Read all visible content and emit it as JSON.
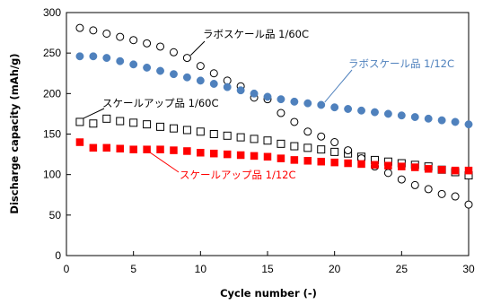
{
  "chart_data": {
    "type": "scatter",
    "xlabel": "Cycle number (-)",
    "ylabel": "Discharge capacity  (mAh/g)",
    "xlim": [
      0,
      30
    ],
    "ylim": [
      0,
      300
    ],
    "xticks": [
      "0",
      "5",
      "10",
      "15",
      "20",
      "25",
      "30"
    ],
    "yticks": [
      "0",
      "50",
      "100",
      "150",
      "200",
      "250",
      "300"
    ],
    "grid": false,
    "legend": "none",
    "series": [
      {
        "name": "ラボスケール品 1/60C",
        "marker": "open-circle",
        "color": "#000000",
        "x": [
          1,
          2,
          3,
          4,
          5,
          6,
          7,
          8,
          9,
          10,
          11,
          12,
          13,
          14,
          15,
          16,
          17,
          18,
          19,
          20,
          21,
          22,
          23,
          24,
          25,
          26,
          27,
          28,
          29,
          30
        ],
        "values": [
          281,
          278,
          274,
          270,
          266,
          262,
          258,
          251,
          244,
          234,
          225,
          216,
          209,
          195,
          193,
          176,
          165,
          153,
          147,
          140,
          130,
          120,
          110,
          102,
          94,
          87,
          82,
          76,
          73,
          63
        ]
      },
      {
        "name": "ラボスケール品 1/12C",
        "marker": "filled-circle",
        "color": "#4f81bd",
        "x": [
          1,
          2,
          3,
          4,
          5,
          6,
          7,
          8,
          9,
          10,
          11,
          12,
          13,
          14,
          15,
          16,
          17,
          18,
          19,
          20,
          21,
          22,
          23,
          24,
          25,
          26,
          27,
          28,
          29,
          30
        ],
        "values": [
          246,
          246,
          244,
          240,
          236,
          232,
          228,
          224,
          220,
          216,
          212,
          208,
          204,
          200,
          196,
          193,
          190,
          188,
          186,
          183,
          181,
          179,
          177,
          175,
          173,
          171,
          169,
          167,
          165,
          162
        ]
      },
      {
        "name": "スケールアップ品 1/60C",
        "marker": "open-square",
        "color": "#000000",
        "x": [
          1,
          2,
          3,
          4,
          5,
          6,
          7,
          8,
          9,
          10,
          11,
          12,
          13,
          14,
          15,
          16,
          17,
          18,
          19,
          20,
          21,
          22,
          23,
          24,
          25,
          26,
          27,
          28,
          29,
          30
        ],
        "values": [
          165,
          163,
          169,
          166,
          164,
          162,
          159,
          157,
          155,
          153,
          150,
          148,
          146,
          144,
          142,
          138,
          135,
          133,
          131,
          128,
          126,
          122,
          118,
          116,
          114,
          112,
          110,
          106,
          103,
          99
        ]
      },
      {
        "name": "スケールアップ品 1/12C",
        "marker": "filled-square",
        "color": "#ff0000",
        "x": [
          1,
          2,
          3,
          4,
          5,
          6,
          7,
          8,
          9,
          10,
          11,
          12,
          13,
          14,
          15,
          16,
          17,
          18,
          19,
          20,
          21,
          22,
          23,
          24,
          25,
          26,
          27,
          28,
          29,
          30
        ],
        "values": [
          140,
          133,
          133,
          132,
          131,
          131,
          131,
          130,
          129,
          127,
          126,
          125,
          124,
          123,
          122,
          120,
          118,
          117,
          116,
          115,
          114,
          113,
          112,
          111,
          110,
          109,
          107,
          106,
          105,
          105
        ]
      }
    ],
    "annotations": [
      {
        "text": "ラボスケール品 1/60C",
        "color": "#000000",
        "target": [
          9,
          244
        ],
        "side": "right"
      },
      {
        "text": "ラボスケール品 1/12C",
        "color": "#4f81bd",
        "target": [
          19,
          186
        ],
        "side": "right"
      },
      {
        "text": "スケールアップ品 1/60C",
        "color": "#000000",
        "target": [
          1,
          165
        ],
        "side": "right"
      },
      {
        "text": "スケールアップ品 1/12C",
        "color": "#ff0000",
        "target": [
          6,
          131
        ],
        "side": "right"
      }
    ]
  }
}
